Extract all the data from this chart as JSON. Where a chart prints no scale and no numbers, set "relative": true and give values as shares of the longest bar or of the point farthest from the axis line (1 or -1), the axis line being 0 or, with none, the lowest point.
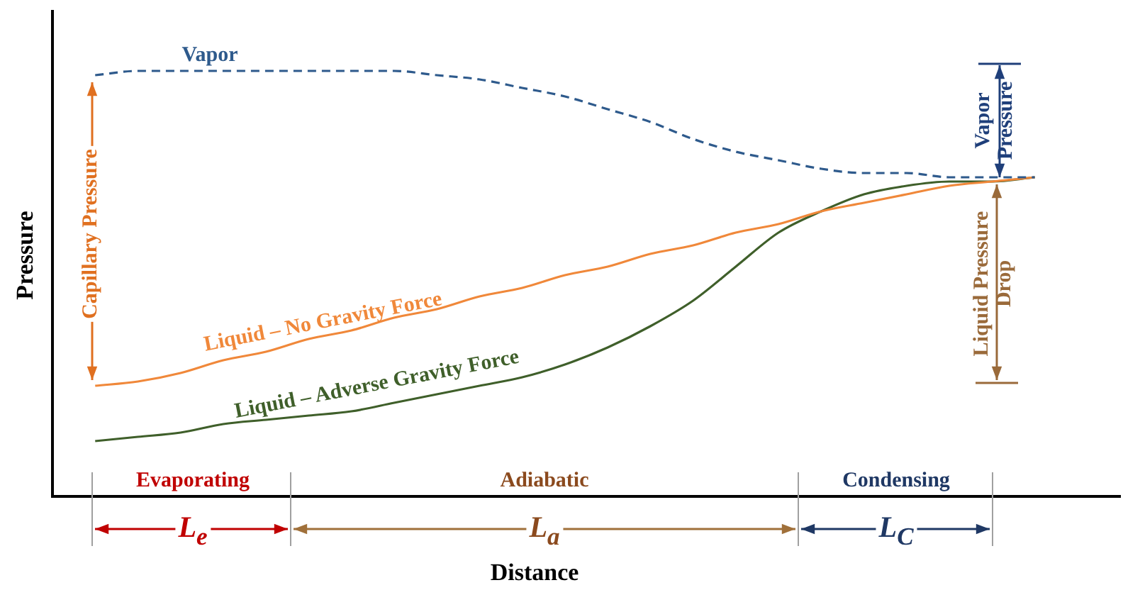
{
  "chart_data": {
    "type": "line",
    "relative": true,
    "xlabel": "Distance",
    "ylabel": "Pressure",
    "grid": false,
    "legend": false,
    "marker": "none",
    "categories": [
      null,
      null,
      null,
      null,
      null,
      null,
      null,
      null,
      null,
      null,
      null,
      null,
      null,
      null,
      null,
      null,
      null,
      null,
      null,
      null,
      null,
      null,
      null,
      null,
      null,
      null
    ],
    "series": [
      {
        "name": "Vapor",
        "color": "#2e5a8c",
        "line_style": "dashed",
        "values": [
          null,
          0.99,
          1,
          1,
          1,
          1,
          1,
          1,
          1,
          0.99,
          0.98,
          0.96,
          0.94,
          0.91,
          0.88,
          0.84,
          0.81,
          0.79,
          0.77,
          0.76,
          0.76,
          0.75,
          0.75,
          0.75,
          null,
          null
        ]
      },
      {
        "name": "Liquid – No Gravity Force",
        "color": "#f0883a",
        "line_style": "solid",
        "values": [
          null,
          0.26,
          0.27,
          0.29,
          0.32,
          0.34,
          0.37,
          0.39,
          0.42,
          0.44,
          0.47,
          0.49,
          0.52,
          0.54,
          0.57,
          0.59,
          0.62,
          0.64,
          0.67,
          0.69,
          0.71,
          0.73,
          0.74,
          0.75,
          null,
          null
        ]
      },
      {
        "name": "Liquid – Adverse Gravity Force",
        "color": "#3f5f2a",
        "line_style": "solid",
        "values": [
          null,
          0.13,
          0.14,
          0.15,
          0.17,
          0.18,
          0.19,
          0.2,
          0.22,
          0.24,
          0.26,
          0.28,
          0.31,
          0.35,
          0.4,
          0.46,
          0.54,
          0.62,
          0.67,
          0.71,
          0.73,
          0.74,
          0.74,
          0.75,
          null,
          null
        ]
      }
    ],
    "annotations": [
      "Capillary Pressure",
      "Vapor Pressure",
      "Liquid Pressure Drop",
      "Evaporating",
      "Adiabatic",
      "Condensing",
      "L$_{e}$",
      "L$_{a}$",
      "L$_{C}$"
    ]
  }
}
